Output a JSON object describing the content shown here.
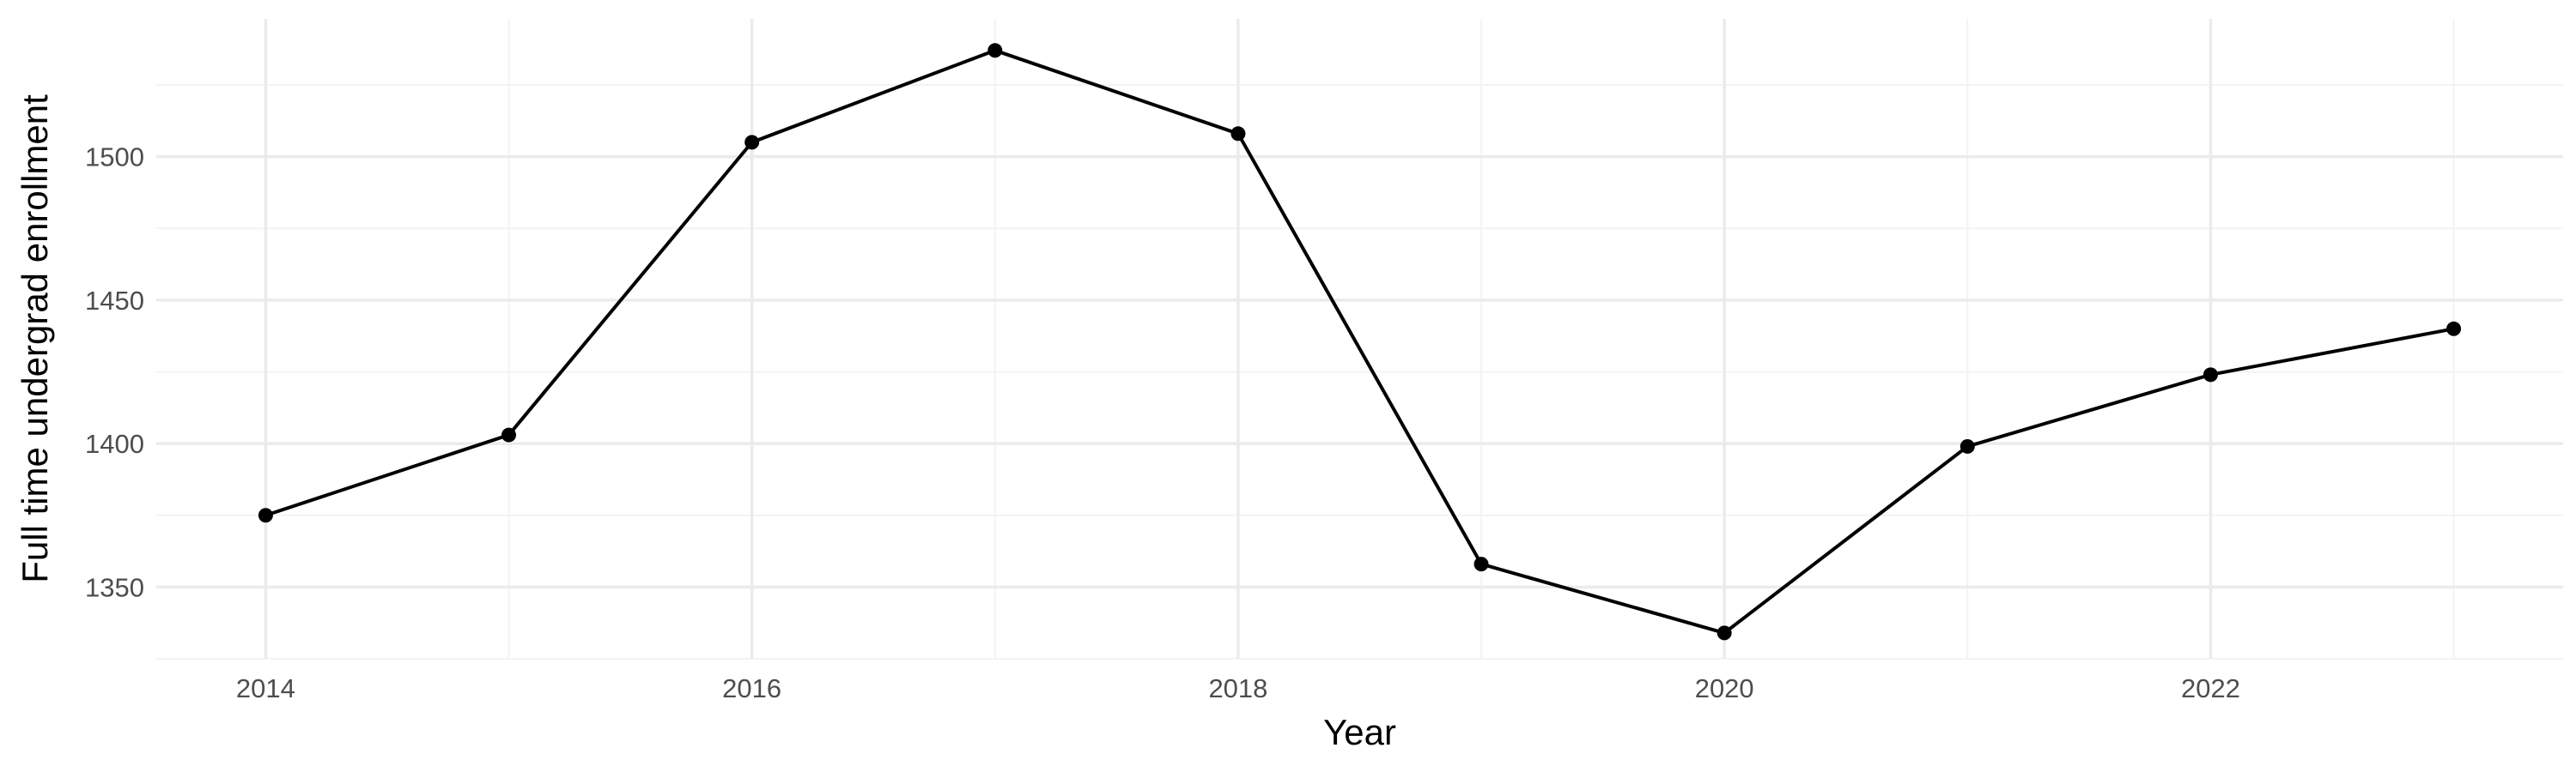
{
  "chart_data": {
    "type": "line",
    "title": "",
    "xlabel": "Year",
    "ylabel": "Full time undergrad enrollment",
    "x": [
      2014,
      2015,
      2016,
      2017,
      2018,
      2019,
      2020,
      2021,
      2022,
      2023
    ],
    "series": [
      {
        "values": [
          1375,
          1403,
          1505,
          1537,
          1508,
          1358,
          1334,
          1399,
          1424,
          1440
        ]
      }
    ],
    "x_ticks": [
      "2014",
      "2016",
      "2018",
      "2020",
      "2022"
    ],
    "y_ticks": [
      "1350",
      "1400",
      "1450",
      "1500"
    ],
    "xlim": [
      2013.55,
      2023.45
    ],
    "ylim": [
      1325,
      1548
    ],
    "grid": true,
    "legend": "none",
    "line_color": "#000000",
    "point_color": "#000000"
  }
}
